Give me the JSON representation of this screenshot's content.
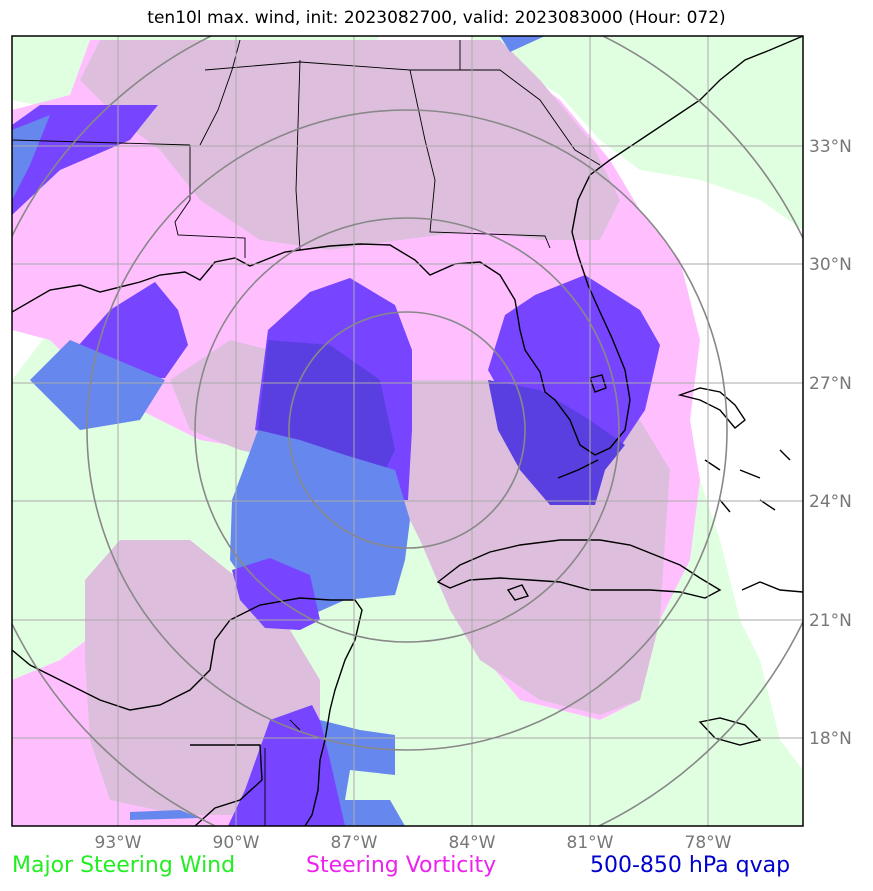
{
  "title": "ten10l max. wind, init: 2023082700, valid: 2023083000 (Hour: 072)",
  "legend": {
    "items": [
      {
        "label": "Major Steering Wind",
        "color": "#22ee22"
      },
      {
        "label": "Steering Vorticity",
        "color": "#ee22ee"
      },
      {
        "label": "500-850 hPa qvap",
        "color": "#0000cc"
      }
    ]
  },
  "map": {
    "lon_labels": [
      "93°W",
      "90°W",
      "87°W",
      "84°W",
      "81°W",
      "78°W"
    ],
    "lat_labels": [
      "33°N",
      "30°N",
      "27°N",
      "24°N",
      "21°N",
      "18°N"
    ],
    "colors": {
      "wind_fill": "#e0ffe0",
      "vorticity_fill": "#ffbfff",
      "overlap_fill": "#ddbfdd",
      "qvap_violet": "#7744ff",
      "qvap_blue": "#6688ee",
      "qvap_dark": "#5a3fe0",
      "range_rings": "#888888",
      "gridlines": "#aaaaaa"
    }
  }
}
